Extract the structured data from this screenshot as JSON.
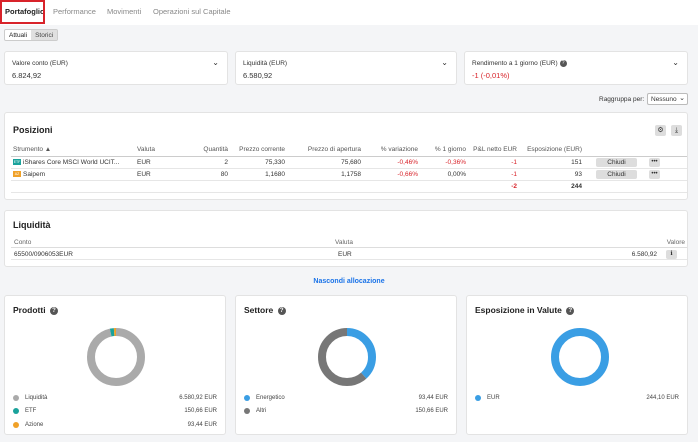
{
  "tabs": [
    "Portafoglio",
    "Performance",
    "Movimenti",
    "Operazioni sul Capitale"
  ],
  "toggle": {
    "active": "Attuali",
    "inactive": "Storici"
  },
  "summary": [
    {
      "label": "Valore conto (EUR)",
      "value": "6.824,92"
    },
    {
      "label": "Liquidità (EUR)",
      "value": "6.580,92"
    },
    {
      "label": "Rendimento a 1 giorno (EUR)",
      "value": "-1 (-0,01%)"
    }
  ],
  "groupby": {
    "label": "Raggruppa per:",
    "value": "Nessuno"
  },
  "positions": {
    "title": "Posizioni",
    "headers": [
      "Strumento ▲",
      "Valuta",
      "Quantità",
      "Prezzo corrente",
      "Prezzo di apertura",
      "% variazione",
      "% 1 giorno",
      "P&L netto EUR",
      "Esposizione (EUR)"
    ],
    "rows": [
      {
        "badge": "ETF",
        "name": "iShares Core MSCI World UCIT...",
        "currency": "EUR",
        "qty": "2",
        "price": "75,330",
        "open": "75,680",
        "change": "-0,46%",
        "day": "-0,36%",
        "pnl": "-1",
        "exposure": "151",
        "action": "Chiudi"
      },
      {
        "badge": "AZ",
        "name": "Saipem",
        "currency": "EUR",
        "qty": "80",
        "price": "1,1680",
        "open": "1,1758",
        "change": "-0,66%",
        "day": "0,00%",
        "pnl": "-1",
        "exposure": "93",
        "action": "Chiudi"
      }
    ],
    "total": {
      "pnl": "-2",
      "exposure": "244"
    }
  },
  "liquidity": {
    "title": "Liquidità",
    "headers": {
      "account": "Conto",
      "currency": "Valuta",
      "value": "Valore"
    },
    "row": {
      "account": "65500/0906053EUR",
      "currency": "EUR",
      "value": "6.580,92"
    }
  },
  "hide_link": "Nascondi allocazione",
  "allocations": [
    {
      "title": "Prodotti",
      "items": [
        {
          "label": "Liquidità",
          "value": "6.580,92 EUR",
          "color": "#aaaaaa",
          "share": 0.9642
        },
        {
          "label": "ETF",
          "value": "150,66 EUR",
          "color": "#1aa29b",
          "share": 0.0221
        },
        {
          "label": "Azione",
          "value": "93,44 EUR",
          "color": "#f0a128",
          "share": 0.0137
        }
      ]
    },
    {
      "title": "Settore",
      "items": [
        {
          "label": "Energetico",
          "value": "93,44 EUR",
          "color": "#3a9ee4",
          "share": 0.3828
        },
        {
          "label": "Altri",
          "value": "150,66 EUR",
          "color": "#777777",
          "share": 0.6172
        }
      ]
    },
    {
      "title": "Esposizione in Valute",
      "items": [
        {
          "label": "EUR",
          "value": "244,10 EUR",
          "color": "#3a9ee4",
          "share": 1.0
        }
      ]
    }
  ]
}
